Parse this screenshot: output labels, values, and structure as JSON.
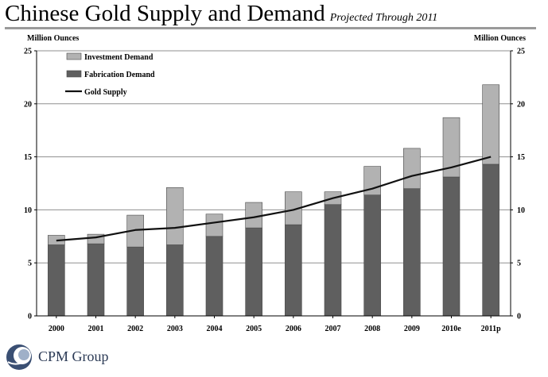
{
  "header": {
    "title": "Chinese Gold Supply and Demand",
    "subtitle": "Projected Through 2011"
  },
  "axis_units": {
    "left": "Million Ounces",
    "right": "Million Ounces"
  },
  "footer": {
    "company": "CPM Group"
  },
  "chart_data": {
    "type": "bar",
    "stacked": true,
    "categories": [
      "2000",
      "2001",
      "2002",
      "2003",
      "2004",
      "2005",
      "2006",
      "2007",
      "2008",
      "2009",
      "2010e",
      "2011p"
    ],
    "series": [
      {
        "name": "Fabrication Demand",
        "type": "bar",
        "color": "#5f5f5f",
        "values": [
          6.7,
          6.8,
          6.5,
          6.7,
          7.5,
          8.3,
          8.6,
          10.5,
          11.4,
          12.0,
          13.1,
          14.3
        ]
      },
      {
        "name": "Investment Demand",
        "type": "bar",
        "color": "#b2b2b2",
        "values": [
          0.9,
          0.9,
          3.0,
          5.4,
          2.1,
          2.4,
          3.1,
          1.2,
          2.7,
          3.8,
          5.6,
          7.5
        ]
      },
      {
        "name": "Gold Supply",
        "type": "line",
        "color": "#111111",
        "values": [
          7.1,
          7.4,
          8.1,
          8.3,
          8.8,
          9.3,
          10.0,
          11.1,
          12.0,
          13.2,
          14.0,
          15.0
        ]
      }
    ],
    "legend_order": [
      "Investment Demand",
      "Fabrication Demand",
      "Gold Supply"
    ],
    "ylim": [
      0,
      25
    ],
    "yticks": [
      0,
      5,
      10,
      15,
      20,
      25
    ],
    "ylabel": "Million Ounces",
    "y2label": "Million Ounces",
    "grid": true,
    "legend_position": "top-left"
  }
}
